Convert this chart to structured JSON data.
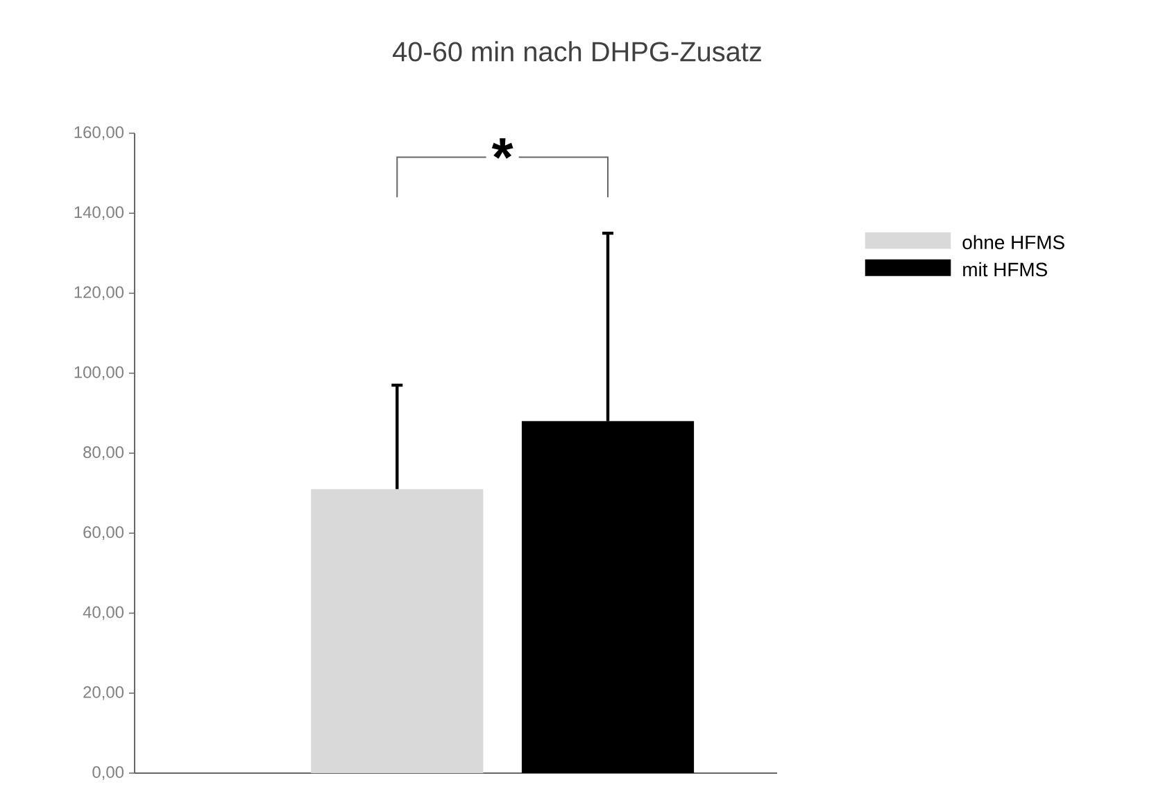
{
  "chart_data": {
    "type": "bar",
    "title": "40-60 min nach DHPG-Zusatz",
    "categories": [
      null
    ],
    "series": [
      {
        "name": "ohne HFMS",
        "color": "#d9d9d9",
        "values": [
          71
        ],
        "errors": [
          [
            71,
            97
          ]
        ]
      },
      {
        "name": "mit HFMS",
        "color": "#000000",
        "values": [
          88
        ],
        "errors": [
          [
            88,
            135
          ]
        ]
      }
    ],
    "ylim": [
      0,
      160
    ],
    "yticks": [
      {
        "value": 0,
        "label": "0,00"
      },
      {
        "value": 20,
        "label": "20,00"
      },
      {
        "value": 40,
        "label": "40,00"
      },
      {
        "value": 60,
        "label": "60,00"
      },
      {
        "value": 80,
        "label": "80,00"
      },
      {
        "value": 100,
        "label": "100,00"
      },
      {
        "value": 120,
        "label": "120,00"
      },
      {
        "value": 140,
        "label": "140,00"
      },
      {
        "value": 160,
        "label": "160,00"
      }
    ],
    "tick_labels": "y",
    "legend": "right",
    "grid": false,
    "annotations": [
      "*"
    ]
  }
}
